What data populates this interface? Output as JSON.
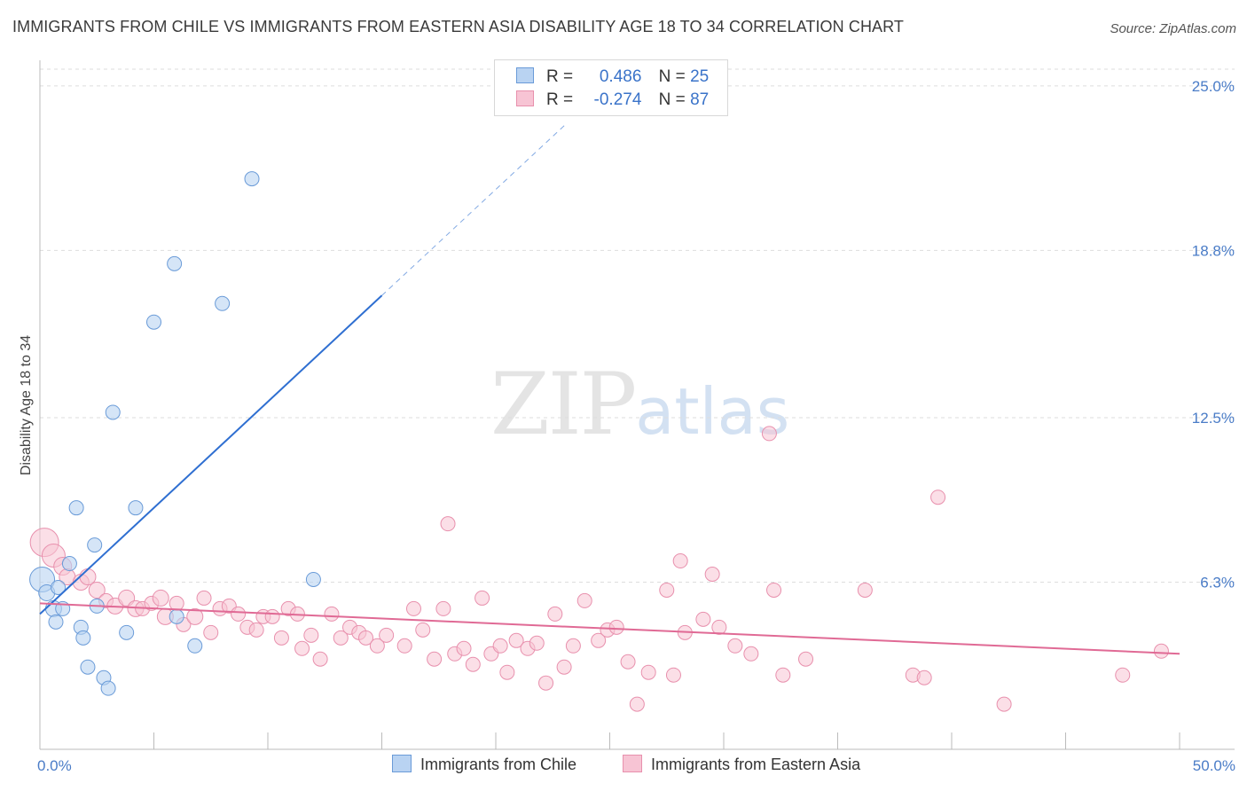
{
  "header": {
    "title": "IMMIGRANTS FROM CHILE VS IMMIGRANTS FROM EASTERN ASIA DISABILITY AGE 18 TO 34 CORRELATION CHART",
    "source": "Source: ZipAtlas.com"
  },
  "legend": {
    "series1": {
      "r_label": "R =",
      "r_value": "0.486",
      "n_label": "N =",
      "n_value": "25"
    },
    "series2": {
      "r_label": "R =",
      "r_value": "-0.274",
      "n_label": "N =",
      "n_value": "87"
    }
  },
  "watermark": {
    "zip": "ZIP",
    "atlas": "atlas"
  },
  "colors": {
    "chile_fill": "#b9d3f2",
    "chile_stroke": "#6a9bd8",
    "chile_line": "#2f6fd1",
    "asia_fill": "#f7c4d4",
    "asia_stroke": "#e890ad",
    "asia_line": "#e06a95",
    "tick_color": "#4a7cc7",
    "grid": "#dddddd"
  },
  "chart_data": {
    "type": "scatter",
    "title": "IMMIGRANTS FROM CHILE VS IMMIGRANTS FROM EASTERN ASIA DISABILITY AGE 18 TO 34 CORRELATION CHART",
    "xlabel": "",
    "ylabel": "Disability Age 18 to 34",
    "xlim": [
      0,
      50
    ],
    "ylim": [
      0,
      26.5
    ],
    "x_tick_labels": [
      {
        "value": 0,
        "label": "0.0%"
      },
      {
        "value": 50,
        "label": "50.0%"
      }
    ],
    "y_tick_labels": [
      {
        "value": 6.3,
        "label": "6.3%"
      },
      {
        "value": 12.5,
        "label": "12.5%"
      },
      {
        "value": 18.8,
        "label": "18.8%"
      },
      {
        "value": 25.0,
        "label": "25.0%"
      }
    ],
    "series": [
      {
        "name": "Immigrants from Chile",
        "r": 0.486,
        "n": 25,
        "points": [
          [
            0.1,
            6.4,
            14
          ],
          [
            0.3,
            5.9,
            9
          ],
          [
            0.6,
            5.3,
            9
          ],
          [
            0.8,
            6.1,
            8
          ],
          [
            1.0,
            5.3,
            8
          ],
          [
            0.7,
            4.8,
            8
          ],
          [
            1.3,
            7.0,
            8
          ],
          [
            1.6,
            9.1,
            8
          ],
          [
            1.8,
            4.6,
            8
          ],
          [
            1.9,
            4.2,
            8
          ],
          [
            2.1,
            3.1,
            8
          ],
          [
            2.4,
            7.7,
            8
          ],
          [
            2.5,
            5.4,
            8
          ],
          [
            2.8,
            2.7,
            8
          ],
          [
            3.0,
            2.3,
            8
          ],
          [
            3.2,
            12.7,
            8
          ],
          [
            3.8,
            4.4,
            8
          ],
          [
            4.2,
            9.1,
            8
          ],
          [
            5.0,
            16.1,
            8
          ],
          [
            5.9,
            18.3,
            8
          ],
          [
            6.0,
            5.0,
            8
          ],
          [
            6.8,
            3.9,
            8
          ],
          [
            8.0,
            16.8,
            8
          ],
          [
            9.3,
            21.5,
            8
          ],
          [
            12.0,
            6.4,
            8
          ]
        ],
        "trend": {
          "x": [
            0,
            15
          ],
          "y": [
            5.1,
            17.1
          ],
          "dashed_to": [
            23,
            23.5
          ]
        }
      },
      {
        "name": "Immigrants from Eastern Asia",
        "r": -0.274,
        "n": 87,
        "points": [
          [
            0.2,
            7.8,
            16
          ],
          [
            0.6,
            7.3,
            13
          ],
          [
            1.0,
            6.9,
            10
          ],
          [
            1.2,
            6.5,
            9
          ],
          [
            1.8,
            6.3,
            9
          ],
          [
            2.1,
            6.5,
            9
          ],
          [
            2.5,
            6.0,
            9
          ],
          [
            2.9,
            5.6,
            8
          ],
          [
            3.3,
            5.4,
            9
          ],
          [
            3.8,
            5.7,
            9
          ],
          [
            4.2,
            5.3,
            9
          ],
          [
            4.5,
            5.3,
            8
          ],
          [
            4.9,
            5.5,
            8
          ],
          [
            5.3,
            5.7,
            9
          ],
          [
            5.5,
            5.0,
            9
          ],
          [
            6.0,
            5.5,
            8
          ],
          [
            6.3,
            4.7,
            8
          ],
          [
            6.8,
            5.0,
            9
          ],
          [
            7.2,
            5.7,
            8
          ],
          [
            7.5,
            4.4,
            8
          ],
          [
            7.9,
            5.3,
            8
          ],
          [
            8.3,
            5.4,
            8
          ],
          [
            8.7,
            5.1,
            8
          ],
          [
            9.1,
            4.6,
            8
          ],
          [
            9.5,
            4.5,
            8
          ],
          [
            9.8,
            5.0,
            8
          ],
          [
            10.2,
            5.0,
            8
          ],
          [
            10.6,
            4.2,
            8
          ],
          [
            10.9,
            5.3,
            8
          ],
          [
            11.3,
            5.1,
            8
          ],
          [
            11.5,
            3.8,
            8
          ],
          [
            11.9,
            4.3,
            8
          ],
          [
            12.3,
            3.4,
            8
          ],
          [
            12.8,
            5.1,
            8
          ],
          [
            13.2,
            4.2,
            8
          ],
          [
            13.6,
            4.6,
            8
          ],
          [
            14.0,
            4.4,
            8
          ],
          [
            14.3,
            4.2,
            8
          ],
          [
            14.8,
            3.9,
            8
          ],
          [
            15.2,
            4.3,
            8
          ],
          [
            16.0,
            3.9,
            8
          ],
          [
            16.4,
            5.3,
            8
          ],
          [
            16.8,
            4.5,
            8
          ],
          [
            17.3,
            3.4,
            8
          ],
          [
            17.7,
            5.3,
            8
          ],
          [
            18.2,
            3.6,
            8
          ],
          [
            18.6,
            3.8,
            8
          ],
          [
            19.0,
            3.2,
            8
          ],
          [
            19.4,
            5.7,
            8
          ],
          [
            19.8,
            3.6,
            8
          ],
          [
            20.2,
            3.9,
            8
          ],
          [
            20.5,
            2.9,
            8
          ],
          [
            20.9,
            4.1,
            8
          ],
          [
            21.4,
            3.8,
            8
          ],
          [
            21.8,
            4.0,
            8
          ],
          [
            22.2,
            2.5,
            8
          ],
          [
            22.6,
            5.1,
            8
          ],
          [
            23.0,
            3.1,
            8
          ],
          [
            23.4,
            3.9,
            8
          ],
          [
            23.9,
            5.6,
            8
          ],
          [
            24.5,
            4.1,
            8
          ],
          [
            24.9,
            4.5,
            8
          ],
          [
            25.3,
            4.6,
            8
          ],
          [
            25.8,
            3.3,
            8
          ],
          [
            26.2,
            1.7,
            8
          ],
          [
            26.7,
            2.9,
            8
          ],
          [
            27.5,
            6.0,
            8
          ],
          [
            27.8,
            2.8,
            8
          ],
          [
            28.1,
            7.1,
            8
          ],
          [
            29.1,
            4.9,
            8
          ],
          [
            29.5,
            6.6,
            8
          ],
          [
            29.8,
            4.6,
            8
          ],
          [
            30.5,
            3.9,
            8
          ],
          [
            31.2,
            3.6,
            8
          ],
          [
            32.0,
            11.9,
            8
          ],
          [
            32.2,
            6.0,
            8
          ],
          [
            32.6,
            2.8,
            8
          ],
          [
            33.6,
            3.4,
            8
          ],
          [
            36.2,
            6.0,
            8
          ],
          [
            38.3,
            2.8,
            8
          ],
          [
            38.8,
            2.7,
            8
          ],
          [
            39.4,
            9.5,
            8
          ],
          [
            42.3,
            1.7,
            8
          ],
          [
            47.5,
            2.8,
            8
          ],
          [
            49.2,
            3.7,
            8
          ],
          [
            17.9,
            8.5,
            8
          ],
          [
            28.3,
            4.4,
            8
          ]
        ],
        "trend": {
          "x": [
            0,
            50
          ],
          "y": [
            5.5,
            3.6
          ]
        }
      }
    ]
  }
}
